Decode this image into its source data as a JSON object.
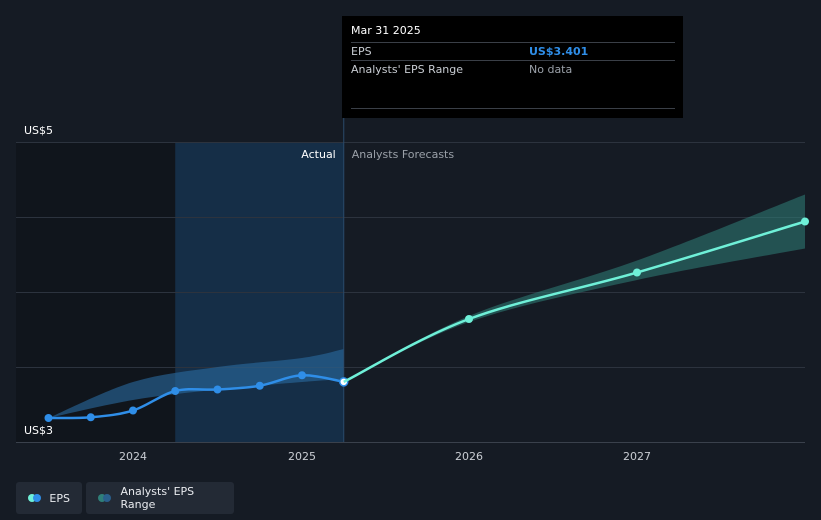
{
  "tooltip": {
    "date": "Mar 31 2025",
    "eps_label": "EPS",
    "eps_value": "US$3.401",
    "range_label": "Analysts' EPS Range",
    "range_value": "No data"
  },
  "legend": {
    "eps_label": "EPS",
    "range_label": "Analysts' EPS Range"
  },
  "colors": {
    "background": "#151b24",
    "eps_actual": "#2f8ee8",
    "eps_forecast": "#6ff0d8",
    "range_actual": "#2a6aa0",
    "range_forecast": "#2f7f79"
  },
  "chart_data": {
    "type": "line",
    "ylim": [
      3.0,
      5.0
    ],
    "y_ticks": [
      {
        "value": 5,
        "label": "US$5"
      },
      {
        "value": 3,
        "label": "US$3"
      }
    ],
    "x_ticks": [
      {
        "value": 2024.0,
        "label": "2024"
      },
      {
        "value": 2025.0,
        "label": "2025"
      },
      {
        "value": 2026.0,
        "label": "2026"
      },
      {
        "value": 2027.0,
        "label": "2027"
      }
    ],
    "section_labels": {
      "actual": "Actual",
      "forecast": "Analysts Forecasts"
    },
    "highlight_date": 2025.25,
    "series": [
      {
        "name": "EPS",
        "kind": "actual",
        "x": [
          2023.5,
          2023.75,
          2024.0,
          2024.25,
          2024.5,
          2024.75,
          2025.0,
          2025.25
        ],
        "y": [
          3.16,
          3.165,
          3.21,
          3.34,
          3.35,
          3.375,
          3.445,
          3.401
        ]
      },
      {
        "name": "EPS",
        "kind": "forecast",
        "x": [
          2025.25,
          2026.0,
          2027.0,
          2028.0
        ],
        "y": [
          3.401,
          3.82,
          4.13,
          4.47
        ]
      }
    ],
    "ranges": [
      {
        "name": "Analysts' EPS Range",
        "kind": "actual",
        "x": [
          2023.5,
          2024.0,
          2024.5,
          2025.0,
          2025.25
        ],
        "low": [
          3.16,
          3.28,
          3.35,
          3.4,
          3.42
        ],
        "high": [
          3.16,
          3.4,
          3.5,
          3.56,
          3.62
        ]
      },
      {
        "name": "Analysts' EPS Range",
        "kind": "forecast",
        "x": [
          2025.25,
          2026.0,
          2027.0,
          2028.0
        ],
        "low": [
          3.401,
          3.8,
          4.08,
          4.29
        ],
        "high": [
          3.401,
          3.84,
          4.21,
          4.65
        ]
      }
    ]
  }
}
